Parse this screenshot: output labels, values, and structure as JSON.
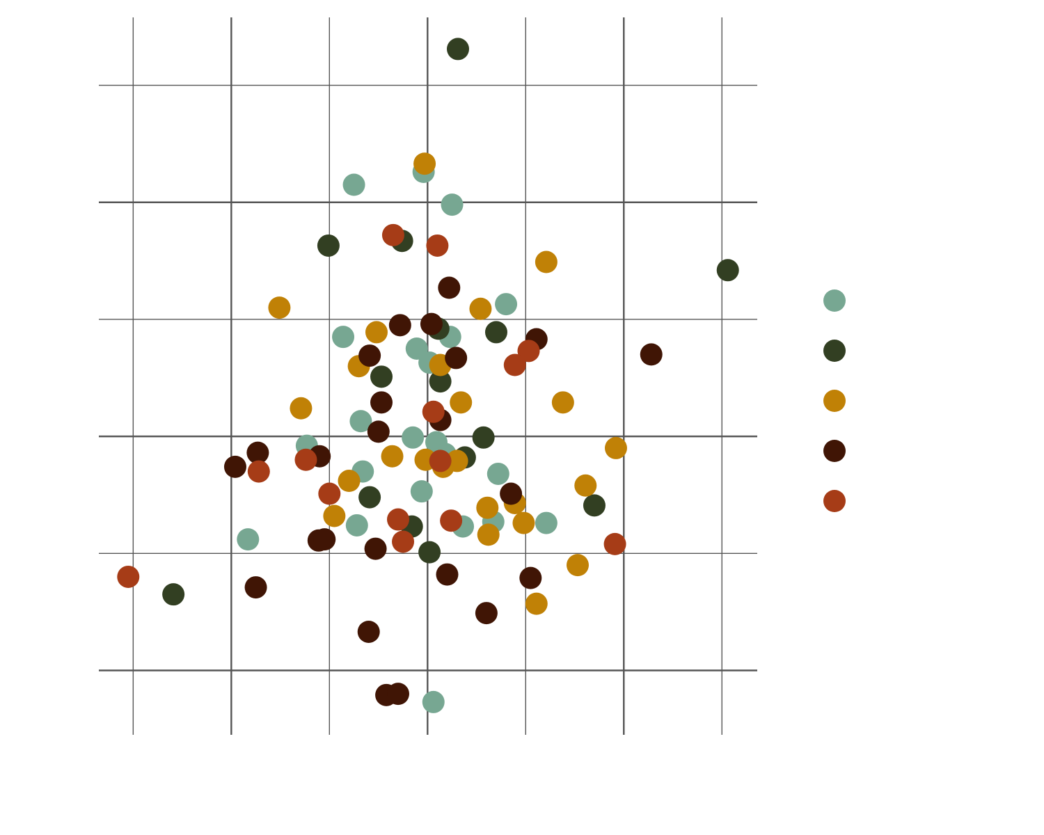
{
  "chart_data": {
    "type": "scatter",
    "title": "",
    "xlabel": "",
    "ylabel": "",
    "xlim": [
      -3.35,
      3.36
    ],
    "ylim": [
      -2.55,
      3.58
    ],
    "x_gridlines": [
      -3,
      -2,
      -1,
      0,
      1,
      2,
      3
    ],
    "y_gridlines": [
      -2,
      -1,
      0,
      1,
      2,
      3
    ],
    "major_gridlines_x": [
      -2,
      0,
      2
    ],
    "major_gridlines_y": [
      -2,
      0,
      2
    ],
    "grid": true,
    "tick_labels_shown": false,
    "legend": "right",
    "series": [
      {
        "color": "#77A792",
        "points": [
          [
            -0.04,
            2.26
          ],
          [
            -0.75,
            2.15
          ],
          [
            0.25,
            1.98
          ],
          [
            0.8,
            1.13
          ],
          [
            -0.86,
            0.85
          ],
          [
            -0.11,
            0.75
          ],
          [
            0.23,
            0.85
          ],
          [
            0.02,
            0.63
          ],
          [
            -0.68,
            0.13
          ],
          [
            -1.23,
            -0.08
          ],
          [
            -0.15,
            -0.01
          ],
          [
            0.09,
            -0.05
          ],
          [
            0.18,
            -0.15
          ],
          [
            -0.66,
            -0.3
          ],
          [
            0.72,
            -0.32
          ],
          [
            -0.06,
            -0.47
          ],
          [
            -0.72,
            -0.76
          ],
          [
            0.36,
            -0.77
          ],
          [
            0.67,
            -0.73
          ],
          [
            1.21,
            -0.74
          ],
          [
            -1.83,
            -0.88
          ],
          [
            0.06,
            -2.27
          ]
        ]
      },
      {
        "color": "#323F22",
        "points": [
          [
            0.31,
            3.31
          ],
          [
            -1.01,
            1.63
          ],
          [
            -0.26,
            1.67
          ],
          [
            3.06,
            1.42
          ],
          [
            0.11,
            0.92
          ],
          [
            0.7,
            0.89
          ],
          [
            -0.47,
            0.51
          ],
          [
            0.13,
            0.47
          ],
          [
            0.57,
            -0.01
          ],
          [
            0.38,
            -0.18
          ],
          [
            -0.59,
            -0.52
          ],
          [
            1.7,
            -0.59
          ],
          [
            -0.16,
            -0.77
          ],
          [
            0.02,
            -0.99
          ],
          [
            -2.59,
            -1.35
          ]
        ]
      },
      {
        "color": "#C08106",
        "points": [
          [
            -0.03,
            2.33
          ],
          [
            1.21,
            1.49
          ],
          [
            -1.51,
            1.1
          ],
          [
            0.54,
            1.09
          ],
          [
            -0.52,
            0.89
          ],
          [
            -0.7,
            0.6
          ],
          [
            0.13,
            0.61
          ],
          [
            -1.29,
            0.24
          ],
          [
            0.34,
            0.29
          ],
          [
            1.38,
            0.29
          ],
          [
            1.92,
            -0.1
          ],
          [
            -0.36,
            -0.17
          ],
          [
            -0.02,
            -0.2
          ],
          [
            0.16,
            -0.26
          ],
          [
            0.3,
            -0.21
          ],
          [
            -0.8,
            -0.38
          ],
          [
            1.61,
            -0.42
          ],
          [
            0.61,
            -0.61
          ],
          [
            0.89,
            -0.57
          ],
          [
            0.98,
            -0.74
          ],
          [
            -0.95,
            -0.68
          ],
          [
            0.62,
            -0.84
          ],
          [
            1.53,
            -1.1
          ],
          [
            1.11,
            -1.43
          ]
        ]
      },
      {
        "color": "#401505",
        "points": [
          [
            0.22,
            1.27
          ],
          [
            -0.28,
            0.95
          ],
          [
            0.04,
            0.96
          ],
          [
            1.11,
            0.83
          ],
          [
            -0.59,
            0.69
          ],
          [
            0.29,
            0.67
          ],
          [
            2.28,
            0.7
          ],
          [
            -0.47,
            0.29
          ],
          [
            0.13,
            0.14
          ],
          [
            -0.5,
            0.04
          ],
          [
            -1.73,
            -0.14
          ],
          [
            -1.1,
            -0.17
          ],
          [
            -1.96,
            -0.26
          ],
          [
            0.85,
            -0.49
          ],
          [
            -1.11,
            -0.89
          ],
          [
            -1.05,
            -0.88
          ],
          [
            -0.53,
            -0.96
          ],
          [
            0.2,
            -1.18
          ],
          [
            1.05,
            -1.21
          ],
          [
            -1.75,
            -1.29
          ],
          [
            0.6,
            -1.51
          ],
          [
            -0.6,
            -1.67
          ],
          [
            -0.42,
            -2.21
          ],
          [
            -0.3,
            -2.2
          ]
        ]
      },
      {
        "color": "#A63C17",
        "points": [
          [
            -0.35,
            1.72
          ],
          [
            0.1,
            1.63
          ],
          [
            1.03,
            0.73
          ],
          [
            0.89,
            0.61
          ],
          [
            0.06,
            0.21
          ],
          [
            -1.24,
            -0.2
          ],
          [
            -1.72,
            -0.3
          ],
          [
            0.13,
            -0.21
          ],
          [
            -1.0,
            -0.49
          ],
          [
            -0.3,
            -0.71
          ],
          [
            0.24,
            -0.72
          ],
          [
            -0.25,
            -0.9
          ],
          [
            1.91,
            -0.92
          ],
          [
            -3.05,
            -1.2
          ]
        ]
      }
    ]
  }
}
